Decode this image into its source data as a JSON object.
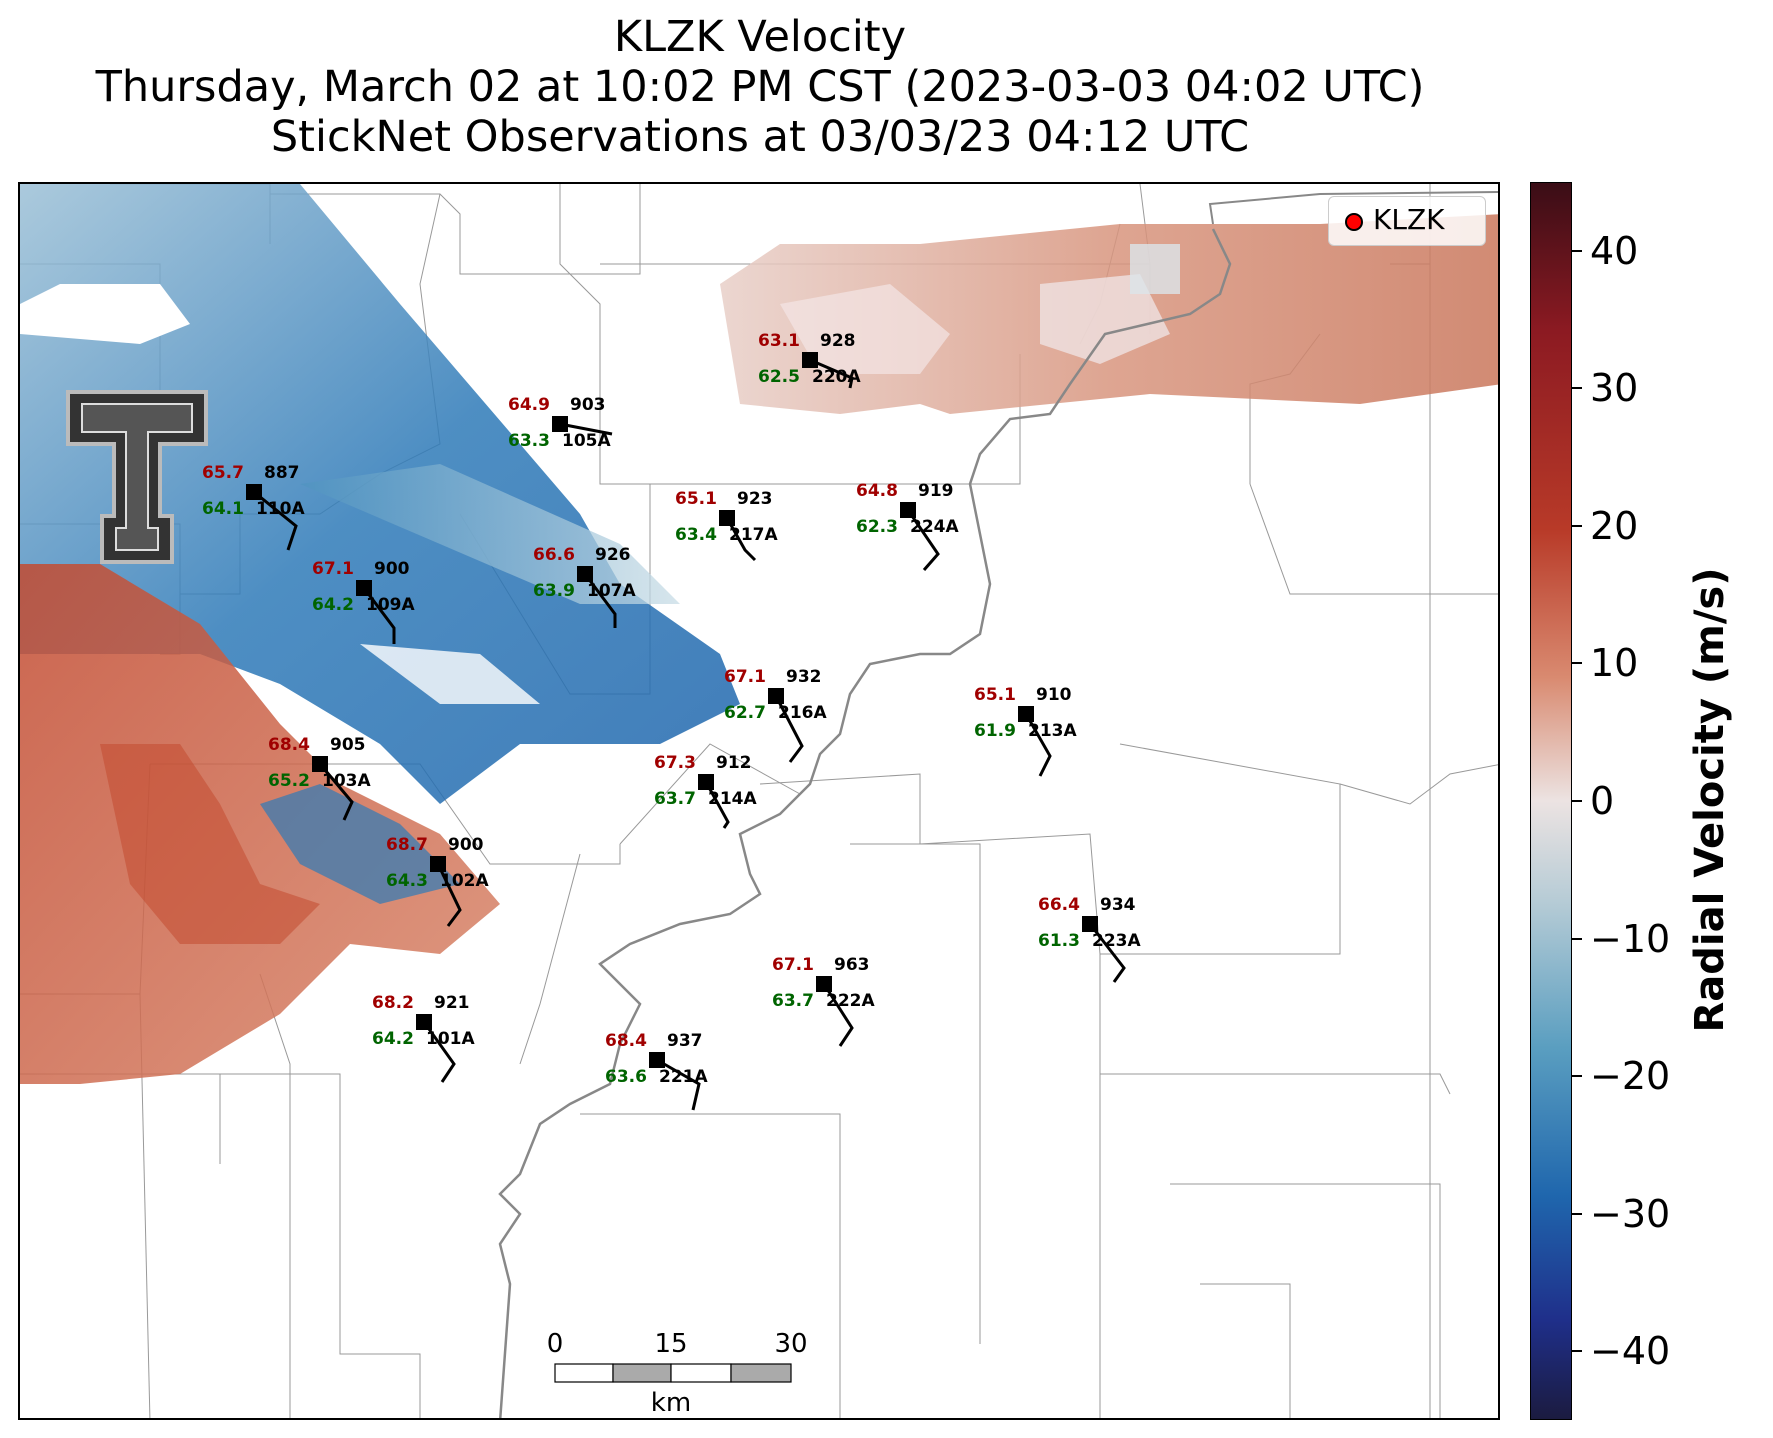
{
  "title": {
    "line1": "KLZK Velocity",
    "line2": "Thursday, March 02 at 10:02 PM CST (2023-03-03 04:02 UTC)",
    "line3": "StickNet Observations at 03/03/23 04:12 UTC"
  },
  "legend": {
    "label": "KLZK",
    "marker_color": "#ff0000"
  },
  "colorbar": {
    "label": "Radial Velocity (m/s)",
    "range": [
      -45,
      45
    ],
    "ticks": [
      "40",
      "30",
      "20",
      "10",
      "0",
      "−10",
      "−20",
      "−30",
      "−40"
    ],
    "colors": {
      "max": "#3a0d16",
      "red": "#b83a28",
      "zero": "#ece3e2",
      "blue": "#1f66ad",
      "min": "#1b1b40"
    }
  },
  "scalebar": {
    "labels": [
      "0",
      "15",
      "30"
    ],
    "unit": "km"
  },
  "colors": {
    "temperature": "#a00000",
    "dewpoint": "#006400",
    "station": "#000000"
  },
  "stations": [
    {
      "id": "220A",
      "pressure": "928",
      "temp": "63.1",
      "dew": "62.5"
    },
    {
      "id": "105A",
      "pressure": "903",
      "temp": "64.9",
      "dew": "63.3"
    },
    {
      "id": "110A",
      "pressure": "887",
      "temp": "65.7",
      "dew": "64.1"
    },
    {
      "id": "217A",
      "pressure": "923",
      "temp": "65.1",
      "dew": "63.4"
    },
    {
      "id": "224A",
      "pressure": "919",
      "temp": "64.8",
      "dew": "62.3"
    },
    {
      "id": "109A",
      "pressure": "900",
      "temp": "67.1",
      "dew": "64.2"
    },
    {
      "id": "107A",
      "pressure": "926",
      "temp": "66.6",
      "dew": "63.9"
    },
    {
      "id": "216A",
      "pressure": "932",
      "temp": "67.1",
      "dew": "62.7"
    },
    {
      "id": "213A",
      "pressure": "910",
      "temp": "65.1",
      "dew": "61.9"
    },
    {
      "id": "103A",
      "pressure": "905",
      "temp": "68.4",
      "dew": "65.2"
    },
    {
      "id": "214A",
      "pressure": "912",
      "temp": "67.3",
      "dew": "63.7"
    },
    {
      "id": "102A",
      "pressure": "900",
      "temp": "68.7",
      "dew": "64.3"
    },
    {
      "id": "223A",
      "pressure": "934",
      "temp": "66.4",
      "dew": "61.3"
    },
    {
      "id": "222A",
      "pressure": "963",
      "temp": "67.1",
      "dew": "63.7"
    },
    {
      "id": "101A",
      "pressure": "921",
      "temp": "68.2",
      "dew": "64.2"
    },
    {
      "id": "221A",
      "pressure": "937",
      "temp": "68.4",
      "dew": "63.6"
    }
  ]
}
